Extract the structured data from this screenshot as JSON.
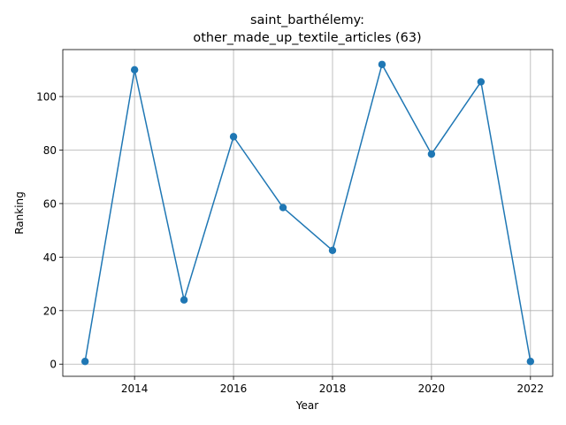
{
  "chart_data": {
    "type": "line",
    "title_line1": "saint_barthélemy:",
    "title_line2": "other_made_up_textile_articles (63)",
    "xlabel": "Year",
    "ylabel": "Ranking",
    "xlim": [
      2012.55,
      2022.45
    ],
    "ylim": [
      -4.55,
      117.55
    ],
    "x_ticks": [
      2014,
      2016,
      2018,
      2020,
      2022
    ],
    "y_ticks": [
      0,
      20,
      40,
      60,
      80,
      100
    ],
    "grid": true,
    "series": [
      {
        "color": "#1f77b4",
        "marker": "circle",
        "x": [
          2013,
          2014,
          2015,
          2016,
          2017,
          2018,
          2019,
          2020,
          2021,
          2022
        ],
        "y": [
          1,
          110,
          24,
          85,
          58.5,
          42.5,
          112,
          78.5,
          105.5,
          1
        ]
      }
    ]
  }
}
